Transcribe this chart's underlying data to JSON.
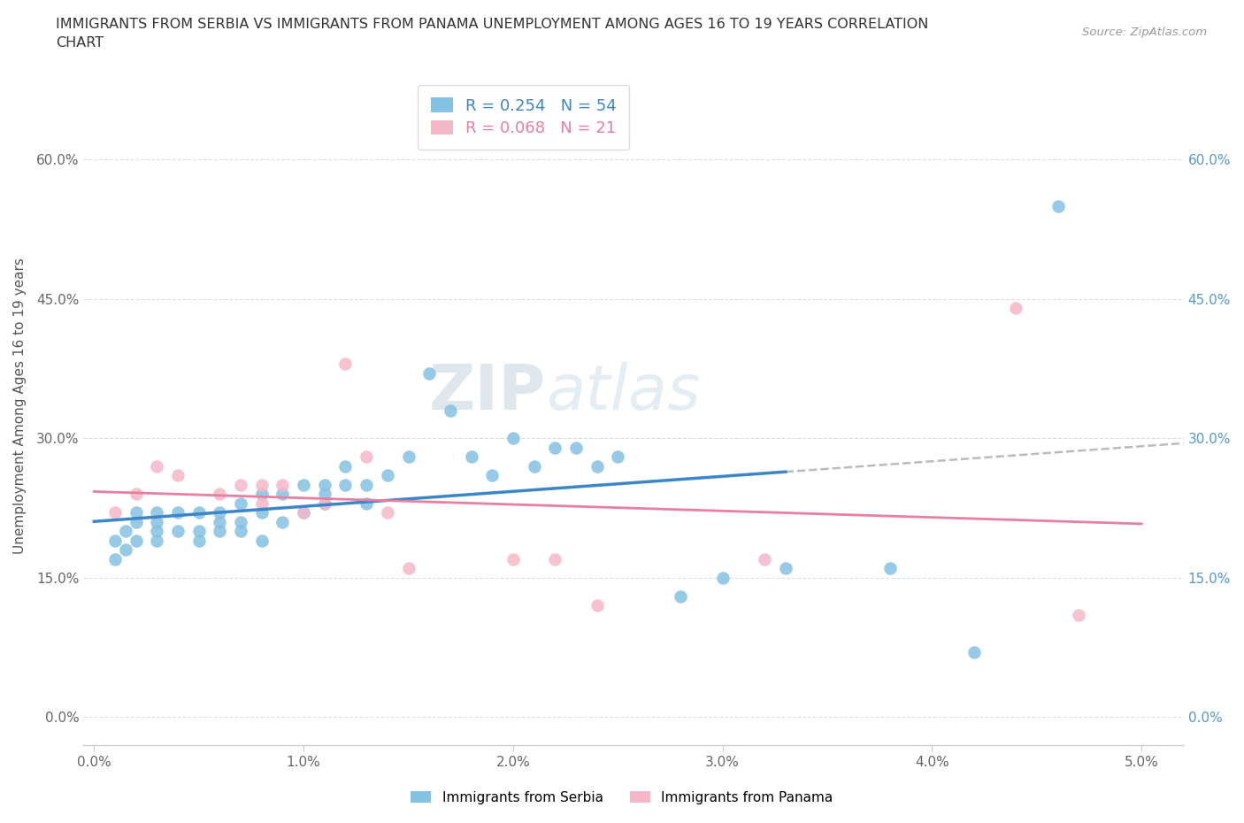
{
  "title_line1": "IMMIGRANTS FROM SERBIA VS IMMIGRANTS FROM PANAMA UNEMPLOYMENT AMONG AGES 16 TO 19 YEARS CORRELATION",
  "title_line2": "CHART",
  "source": "Source: ZipAtlas.com",
  "ylabel": "Unemployment Among Ages 16 to 19 years",
  "xlim": [
    -0.0005,
    0.052
  ],
  "ylim": [
    -0.03,
    0.7
  ],
  "yticks": [
    0.0,
    0.15,
    0.3,
    0.45,
    0.6
  ],
  "ytick_labels": [
    "0.0%",
    "15.0%",
    "30.0%",
    "45.0%",
    "60.0%"
  ],
  "xticks": [
    0.0,
    0.01,
    0.02,
    0.03,
    0.04,
    0.05
  ],
  "xtick_labels": [
    "0.0%",
    "1.0%",
    "2.0%",
    "3.0%",
    "4.0%",
    "5.0%"
  ],
  "serbia_R": 0.254,
  "serbia_N": 54,
  "panama_R": 0.068,
  "panama_N": 21,
  "serbia_color": "#85c1e2",
  "panama_color": "#f5b8c8",
  "serbia_line_color": "#3a86c8",
  "panama_line_color": "#e87fa0",
  "serbia_scatter_x": [
    0.001,
    0.001,
    0.0015,
    0.0015,
    0.002,
    0.002,
    0.002,
    0.003,
    0.003,
    0.003,
    0.003,
    0.004,
    0.004,
    0.005,
    0.005,
    0.005,
    0.006,
    0.006,
    0.006,
    0.007,
    0.007,
    0.007,
    0.008,
    0.008,
    0.008,
    0.009,
    0.009,
    0.01,
    0.01,
    0.011,
    0.011,
    0.011,
    0.012,
    0.012,
    0.013,
    0.013,
    0.014,
    0.015,
    0.016,
    0.017,
    0.018,
    0.019,
    0.02,
    0.021,
    0.022,
    0.023,
    0.024,
    0.025,
    0.028,
    0.03,
    0.033,
    0.038,
    0.042,
    0.046
  ],
  "serbia_scatter_y": [
    0.19,
    0.17,
    0.2,
    0.18,
    0.19,
    0.21,
    0.22,
    0.2,
    0.21,
    0.22,
    0.19,
    0.2,
    0.22,
    0.2,
    0.19,
    0.22,
    0.2,
    0.22,
    0.21,
    0.21,
    0.23,
    0.2,
    0.24,
    0.22,
    0.19,
    0.21,
    0.24,
    0.22,
    0.25,
    0.24,
    0.23,
    0.25,
    0.25,
    0.27,
    0.23,
    0.25,
    0.26,
    0.28,
    0.37,
    0.33,
    0.28,
    0.26,
    0.3,
    0.27,
    0.29,
    0.29,
    0.27,
    0.28,
    0.13,
    0.15,
    0.16,
    0.16,
    0.07,
    0.55
  ],
  "panama_scatter_x": [
    0.001,
    0.002,
    0.003,
    0.004,
    0.006,
    0.007,
    0.008,
    0.008,
    0.009,
    0.01,
    0.011,
    0.012,
    0.013,
    0.014,
    0.015,
    0.02,
    0.022,
    0.024,
    0.032,
    0.044,
    0.047
  ],
  "panama_scatter_y": [
    0.22,
    0.24,
    0.27,
    0.26,
    0.24,
    0.25,
    0.25,
    0.23,
    0.25,
    0.22,
    0.23,
    0.38,
    0.28,
    0.22,
    0.16,
    0.17,
    0.17,
    0.12,
    0.17,
    0.44,
    0.11
  ],
  "watermark_zip": "ZIP",
  "watermark_atlas": "atlas",
  "legend_serbia_label": "Immigrants from Serbia",
  "legend_panama_label": "Immigrants from Panama",
  "background_color": "#ffffff",
  "grid_color": "#dddddd",
  "dashed_line_color": "#bbbbbb",
  "right_tick_color": "#5599cc"
}
